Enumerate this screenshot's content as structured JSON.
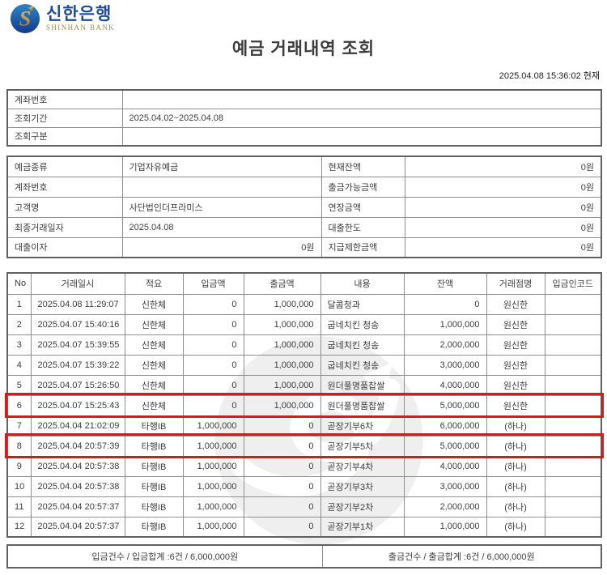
{
  "brand": {
    "logo_korean": "신한은행",
    "logo_english": "SHINHAN BANK"
  },
  "page": {
    "title": "예금 거래내역 조회",
    "timestamp": "2025.04.08 15:36:02 현재"
  },
  "colors": {
    "highlight_red": "#ed1111",
    "logo_blue": "#1c4ca0",
    "logo_gold": "#9c8a55",
    "border_gray": "#8f8f8f"
  },
  "icons": {
    "logo_symbol": "shinhan-s-bird-in-blue-circle",
    "watermark": "shinhan-logo-watermark"
  },
  "query_info": {
    "rows": [
      {
        "label": "계좌번호",
        "value": ""
      },
      {
        "label": "조회기간",
        "value": "2025.04.02~2025.04.08"
      },
      {
        "label": "조회구분",
        "value": ""
      }
    ]
  },
  "account_info": {
    "rows": [
      {
        "label_left": "예금종류",
        "value_left": "기업자유예금",
        "value_left_align": "left",
        "label_right": "현재잔액",
        "value_right": "0원"
      },
      {
        "label_left": "계좌번호",
        "value_left": "",
        "value_left_align": "left",
        "label_right": "출금가능금액",
        "value_right": "0원"
      },
      {
        "label_left": "고객명",
        "value_left": "사단법인더프라미스",
        "value_left_align": "left",
        "label_right": "연장금액",
        "value_right": "0원"
      },
      {
        "label_left": "최종거래일자",
        "value_left": "2025.04.08",
        "value_left_align": "left",
        "label_right": "대출한도",
        "value_right": "0원"
      },
      {
        "label_left": "대출이자",
        "value_left": "0원",
        "value_left_align": "right",
        "label_right": "지급제한금액",
        "value_right": "0원"
      }
    ]
  },
  "transactions": {
    "columns": [
      "No",
      "거래일시",
      "적요",
      "입금액",
      "출금액",
      "내용",
      "잔액",
      "거래점명",
      "입금인코드"
    ],
    "rows": [
      {
        "no": "1",
        "datetime": "2025.04.08 11:29:07",
        "summary": "신한체",
        "deposit": "0",
        "withdrawal": "1,000,000",
        "content": "달콤청과",
        "balance": "0",
        "branch": "원신한",
        "code": "",
        "highlighted": false
      },
      {
        "no": "2",
        "datetime": "2025.04.07 15:40:16",
        "summary": "신한체",
        "deposit": "0",
        "withdrawal": "1,000,000",
        "content": "굽네치킨 청송",
        "balance": "1,000,000",
        "branch": "원신한",
        "code": "",
        "highlighted": false
      },
      {
        "no": "3",
        "datetime": "2025.04.07 15:39:55",
        "summary": "신한체",
        "deposit": "0",
        "withdrawal": "1,000,000",
        "content": "굽네치킨 청송",
        "balance": "2,000,000",
        "branch": "원신한",
        "code": "",
        "highlighted": false
      },
      {
        "no": "4",
        "datetime": "2025.04.07 15:39:22",
        "summary": "신한체",
        "deposit": "0",
        "withdrawal": "1,000,000",
        "content": "굽네치킨 청송",
        "balance": "3,000,000",
        "branch": "원신한",
        "code": "",
        "highlighted": false
      },
      {
        "no": "5",
        "datetime": "2025.04.07 15:26:50",
        "summary": "신한체",
        "deposit": "0",
        "withdrawal": "1,000,000",
        "content": "원더풀명품찹쌀",
        "balance": "4,000,000",
        "branch": "원신한",
        "code": "",
        "highlighted": false
      },
      {
        "no": "6",
        "datetime": "2025.04.07 15:25:43",
        "summary": "신한체",
        "deposit": "0",
        "withdrawal": "1,000,000",
        "content": "원더풀명품찹쌀",
        "balance": "5,000,000",
        "branch": "원신한",
        "code": "",
        "highlighted": true
      },
      {
        "no": "7",
        "datetime": "2025.04.04 21:02:09",
        "summary": "타행IB",
        "deposit": "1,000,000",
        "withdrawal": "0",
        "content": "곧장기부6차",
        "balance": "6,000,000",
        "branch": "(하나)",
        "code": "",
        "highlighted": false
      },
      {
        "no": "8",
        "datetime": "2025.04.04 20:57:39",
        "summary": "타행IB",
        "deposit": "1,000,000",
        "withdrawal": "0",
        "content": "곧장기부5차",
        "balance": "5,000,000",
        "branch": "(하나)",
        "code": "",
        "highlighted": true
      },
      {
        "no": "9",
        "datetime": "2025.04.04 20:57:38",
        "summary": "타행IB",
        "deposit": "1,000,000",
        "withdrawal": "0",
        "content": "곧장기부4차",
        "balance": "4,000,000",
        "branch": "(하나)",
        "code": "",
        "highlighted": false
      },
      {
        "no": "10",
        "datetime": "2025.04.04 20:57:38",
        "summary": "타행IB",
        "deposit": "1,000,000",
        "withdrawal": "0",
        "content": "곧장기부3차",
        "balance": "3,000,000",
        "branch": "(하나)",
        "code": "",
        "highlighted": false
      },
      {
        "no": "11",
        "datetime": "2025.04.04 20:57:37",
        "summary": "타행IB",
        "deposit": "1,000,000",
        "withdrawal": "0",
        "content": "곧장기부2차",
        "balance": "2,000,000",
        "branch": "(하나)",
        "code": "",
        "highlighted": false
      },
      {
        "no": "12",
        "datetime": "2025.04.04 20:57:37",
        "summary": "타행IB",
        "deposit": "1,000,000",
        "withdrawal": "0",
        "content": "곧장기부1차",
        "balance": "1,000,000",
        "branch": "(하나)",
        "code": "",
        "highlighted": false
      }
    ]
  },
  "summary": {
    "deposit_total": "입금건수 / 입금합계 :6건 / 6,000,000원",
    "withdrawal_total": "출금건수 / 출금합계 :6건 / 6,000,000원"
  }
}
